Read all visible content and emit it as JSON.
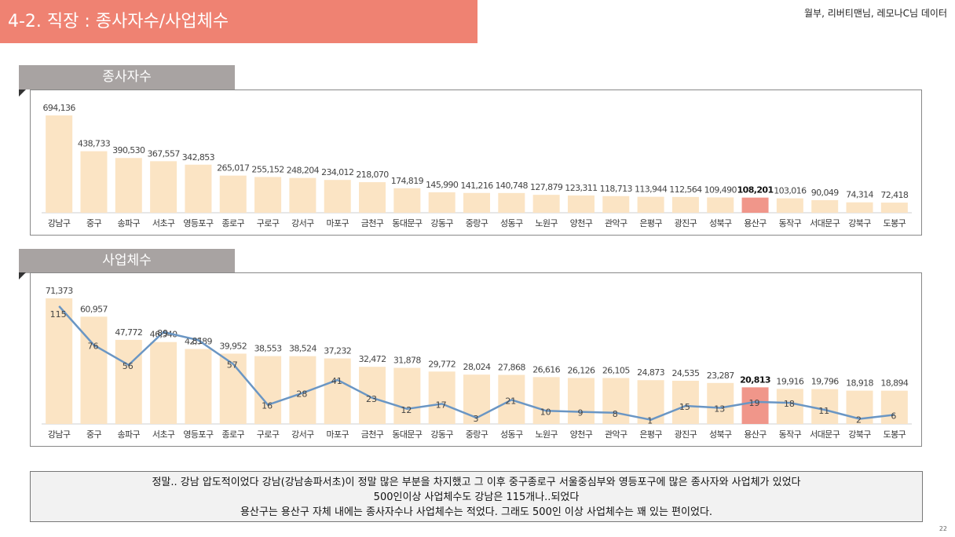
{
  "header": {
    "title": "4-2. 직장 : 종사자수/사업체수",
    "credit": "월부, 리버티맨님, 레모나C님 데이터"
  },
  "colors": {
    "bar": "#fbe4c4",
    "highlight_bar": "#f0968a",
    "line": "#6a96c4",
    "title_bar": "#ef8272",
    "section_label": "#a8a3a2"
  },
  "chart_data": [
    {
      "type": "bar",
      "title": "종사자수",
      "categories": [
        "강남구",
        "중구",
        "송파구",
        "서초구",
        "영등포구",
        "종로구",
        "구로구",
        "강서구",
        "마포구",
        "금천구",
        "동대문구",
        "강동구",
        "중랑구",
        "성동구",
        "노원구",
        "양천구",
        "관악구",
        "은평구",
        "광진구",
        "성북구",
        "용산구",
        "동작구",
        "서대문구",
        "강북구",
        "도봉구"
      ],
      "values": [
        694136,
        438733,
        390530,
        367557,
        342853,
        265017,
        255152,
        248204,
        234012,
        218070,
        174819,
        145990,
        141216,
        140748,
        127879,
        123311,
        118713,
        113944,
        112564,
        109490,
        108201,
        103016,
        90049,
        74314,
        72418
      ],
      "value_labels": [
        "694,136",
        "438,733",
        "390,530",
        "367,557",
        "342,853",
        "265,017",
        "255,152",
        "248,204",
        "234,012",
        "218,070",
        "174,819",
        "145,990",
        "141,216",
        "140,748",
        "127,879",
        "123,311",
        "118,713",
        "113,944",
        "112,564",
        "109,490",
        "108,201",
        "103,016",
        "90,049",
        "74,314",
        "72,418"
      ],
      "highlight_category": "용산구"
    },
    {
      "type": "bar",
      "title": "사업체수",
      "categories": [
        "강남구",
        "중구",
        "송파구",
        "서초구",
        "영등포구",
        "종로구",
        "구로구",
        "강서구",
        "마포구",
        "금천구",
        "동대문구",
        "강동구",
        "중랑구",
        "성동구",
        "노원구",
        "양천구",
        "관악구",
        "은평구",
        "광진구",
        "성북구",
        "용산구",
        "동작구",
        "서대문구",
        "강북구",
        "도봉구"
      ],
      "values": [
        71373,
        60957,
        47772,
        46540,
        42589,
        39952,
        38553,
        38524,
        37232,
        32472,
        31878,
        29772,
        28024,
        27868,
        26616,
        26126,
        26105,
        24873,
        24535,
        23287,
        20813,
        19916,
        19796,
        18918,
        18894
      ],
      "value_labels": [
        "71,373",
        "60,957",
        "47,772",
        "46,540",
        "42,589",
        "39,952",
        "38,553",
        "38,524",
        "37,232",
        "32,472",
        "31,878",
        "29,772",
        "28,024",
        "27,868",
        "26,616",
        "26,126",
        "26,105",
        "24,873",
        "24,535",
        "23,287",
        "20,813",
        "19,916",
        "19,796",
        "18,918",
        "18,894"
      ],
      "highlight_category": "용산구",
      "line_series": {
        "type": "line",
        "values": [
          115,
          76,
          56,
          89,
          81,
          57,
          16,
          28,
          41,
          23,
          12,
          17,
          3,
          21,
          10,
          9,
          8,
          1,
          15,
          13,
          19,
          18,
          11,
          2,
          6
        ]
      }
    }
  ],
  "note": {
    "lines": [
      "정말.. 강남 압도적이었다 강남(강남송파서초)이 정말 많은 부분을 차지했고 그 이후 중구종로구 서울중심부와 영등포구에 많은 종사자와 사업체가 있었다",
      "500인이상 사업체수도 강남은 115개나..되었다",
      "용산구는 용산구 자체 내에는 종사자수나 사업체수는 적었다. 그래도 500인 이상 사업체수는 꽤 있는 편이었다."
    ]
  },
  "page_number": "22"
}
